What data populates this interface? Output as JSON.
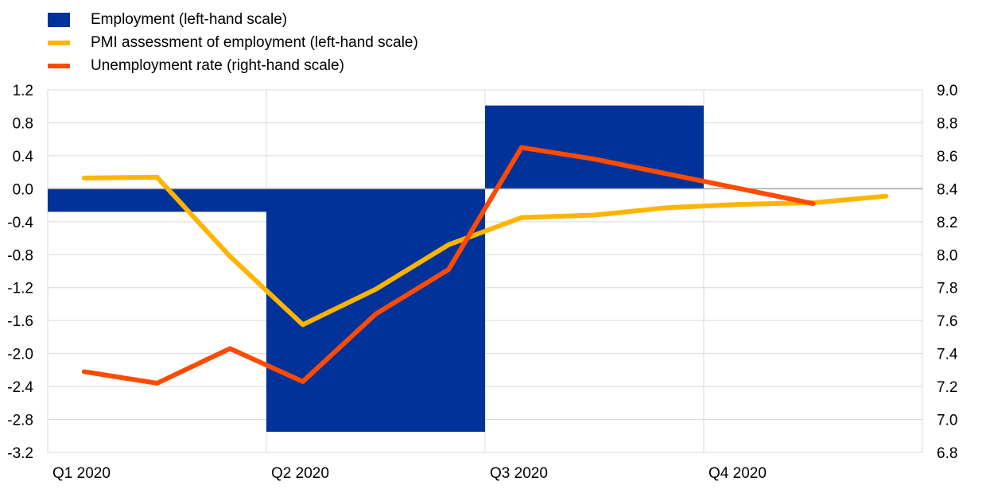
{
  "chart_data": {
    "type": "bar+line",
    "title": "",
    "xlabel": "",
    "ylabel_left": "",
    "ylabel_right": "",
    "grid": true,
    "legend_position": "top-left",
    "x_categories": [
      "Q1 2020",
      "Q2 2020",
      "Q3 2020",
      "Q4 2020"
    ],
    "left_axis": {
      "min": -3.2,
      "max": 1.2,
      "ticks": [
        "1.2",
        "0.8",
        "0.4",
        "0.0",
        "-0.4",
        "-0.8",
        "-1.2",
        "-1.6",
        "-2.0",
        "-2.4",
        "-2.8",
        "-3.2"
      ]
    },
    "right_axis": {
      "min": 6.8,
      "max": 9.0,
      "ticks": [
        "9.0",
        "8.8",
        "8.6",
        "8.4",
        "8.2",
        "8.0",
        "7.8",
        "7.6",
        "7.4",
        "7.2",
        "7.0",
        "6.8"
      ]
    },
    "series": [
      {
        "name": "Employment (left-hand scale)",
        "kind": "bar",
        "axis": "left",
        "color": "#003299",
        "categories": [
          "Q1 2020",
          "Q2 2020",
          "Q3 2020"
        ],
        "values": [
          -0.28,
          -2.95,
          1.01
        ]
      },
      {
        "name": "PMI assessment of employment (left-hand scale)",
        "kind": "line",
        "axis": "left",
        "color": "#FFB400",
        "x": [
          "Jan 2020",
          "Feb 2020",
          "Mar 2020",
          "Apr 2020",
          "May 2020",
          "Jun 2020",
          "Jul 2020",
          "Aug 2020",
          "Sep 2020",
          "Oct 2020",
          "Nov 2020",
          "Dec 2020"
        ],
        "values": [
          0.13,
          0.14,
          -0.82,
          -1.65,
          -1.22,
          -0.68,
          -0.35,
          -0.32,
          -0.23,
          -0.19,
          -0.17,
          -0.09
        ]
      },
      {
        "name": "Unemployment rate (right-hand scale)",
        "kind": "line",
        "axis": "right",
        "color": "#FF4B00",
        "x": [
          "Jan 2020",
          "Feb 2020",
          "Mar 2020",
          "Apr 2020",
          "May 2020",
          "Jun 2020",
          "Jul 2020",
          "Aug 2020",
          "Sep 2020",
          "Oct 2020",
          "Nov 2020"
        ],
        "values": [
          7.29,
          7.22,
          7.43,
          7.23,
          7.64,
          7.91,
          8.65,
          8.58,
          8.49,
          8.4,
          8.31
        ]
      }
    ]
  }
}
